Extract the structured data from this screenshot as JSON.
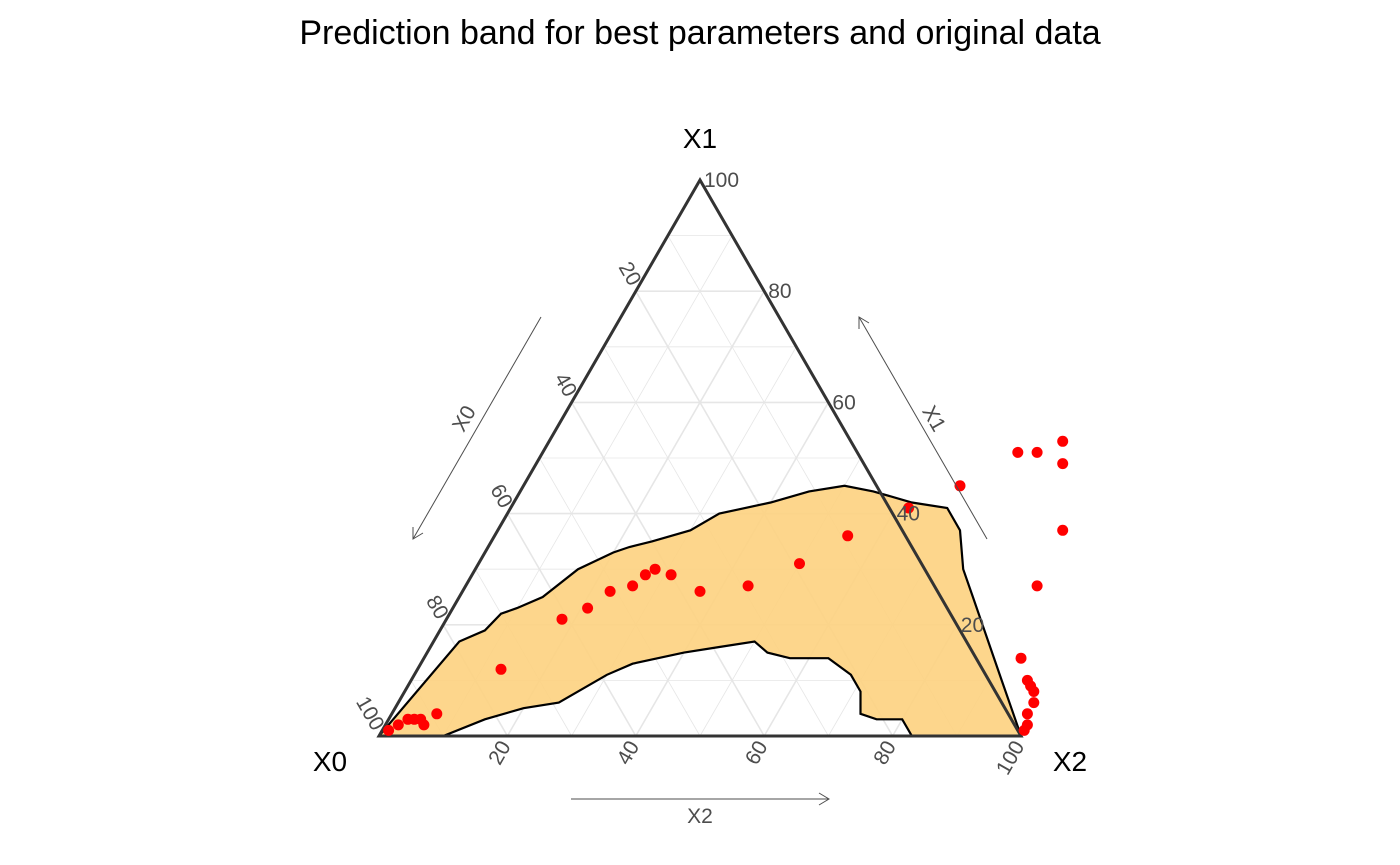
{
  "chart_data": {
    "type": "ternary",
    "title": "Prediction band for best parameters and original data",
    "axes": {
      "X0": {
        "label": "X0",
        "arrow_label": "X0"
      },
      "X1": {
        "label": "X1",
        "arrow_label": "X1"
      },
      "X2": {
        "label": "X2",
        "arrow_label": "X2"
      }
    },
    "ticks": [
      20,
      40,
      60,
      80,
      100
    ],
    "tick_labels": [
      "20",
      "40",
      "60",
      "80",
      "100"
    ],
    "range": [
      0,
      100
    ],
    "grid": true,
    "colors": {
      "band_fill": "#FDD17F",
      "band_outline": "#000000",
      "points": "#FF0000",
      "triangle": "#333333",
      "grid": "#e6e6e6"
    },
    "band": {
      "upper_boundary": [
        [
          0,
          0
        ],
        [
          4,
          17
        ],
        [
          7,
          19
        ],
        [
          8,
          22
        ],
        [
          10,
          23
        ],
        [
          13,
          25
        ],
        [
          16,
          30
        ],
        [
          20,
          33
        ],
        [
          22,
          34
        ],
        [
          25,
          35
        ],
        [
          30,
          37
        ],
        [
          33,
          40
        ],
        [
          40,
          42
        ],
        [
          45,
          44
        ],
        [
          50,
          45
        ],
        [
          55,
          44
        ],
        [
          62,
          42
        ],
        [
          68,
          41
        ],
        [
          72,
          37
        ],
        [
          76,
          30
        ],
        [
          80,
          25
        ],
        [
          84,
          20
        ],
        [
          88,
          15
        ],
        [
          92,
          10
        ],
        [
          96,
          5
        ],
        [
          100,
          0
        ]
      ],
      "lower_boundary": [
        [
          0,
          0
        ],
        [
          10,
          0
        ],
        [
          15,
          3
        ],
        [
          20,
          5
        ],
        [
          25,
          6
        ],
        [
          30,
          11
        ],
        [
          33,
          13
        ],
        [
          40,
          15
        ],
        [
          45,
          16
        ],
        [
          50,
          17
        ],
        [
          53,
          15
        ],
        [
          57,
          14
        ],
        [
          63,
          14
        ],
        [
          68,
          11
        ],
        [
          71,
          8
        ],
        [
          73,
          4
        ],
        [
          76,
          3
        ],
        [
          80,
          3
        ],
        [
          83,
          0
        ],
        [
          100,
          0
        ]
      ]
    },
    "points": [
      {
        "x2": 1,
        "x1": 1
      },
      {
        "x2": 2,
        "x1": 2
      },
      {
        "x2": 3,
        "x1": 3
      },
      {
        "x2": 4,
        "x1": 3
      },
      {
        "x2": 5,
        "x1": 3
      },
      {
        "x2": 6,
        "x1": 2
      },
      {
        "x2": 7,
        "x1": 4
      },
      {
        "x2": 13,
        "x1": 12
      },
      {
        "x2": 18,
        "x1": 21
      },
      {
        "x2": 21,
        "x1": 23
      },
      {
        "x2": 23,
        "x1": 26
      },
      {
        "x2": 26,
        "x1": 27
      },
      {
        "x2": 27,
        "x1": 29
      },
      {
        "x2": 28,
        "x1": 30
      },
      {
        "x2": 31,
        "x1": 29
      },
      {
        "x2": 37,
        "x1": 26
      },
      {
        "x2": 44,
        "x1": 27
      },
      {
        "x2": 50,
        "x1": 31
      },
      {
        "x2": 55,
        "x1": 36
      },
      {
        "x2": 62,
        "x1": 41
      },
      {
        "x2": 68,
        "x1": 45
      },
      {
        "x2": 74,
        "x1": 51
      },
      {
        "x2": 77,
        "x1": 51
      },
      {
        "x2": 80,
        "x1": 53
      },
      {
        "x2": 82,
        "x1": 49
      },
      {
        "x2": 88,
        "x1": 37
      },
      {
        "x2": 89,
        "x1": 27
      },
      {
        "x2": 93,
        "x1": 14
      },
      {
        "x2": 96,
        "x1": 10
      },
      {
        "x2": 97,
        "x1": 9
      },
      {
        "x2": 98,
        "x1": 8
      },
      {
        "x2": 99,
        "x1": 6
      },
      {
        "x2": 99,
        "x1": 4
      },
      {
        "x2": 100,
        "x1": 2
      },
      {
        "x2": 100,
        "x1": 1
      }
    ]
  }
}
